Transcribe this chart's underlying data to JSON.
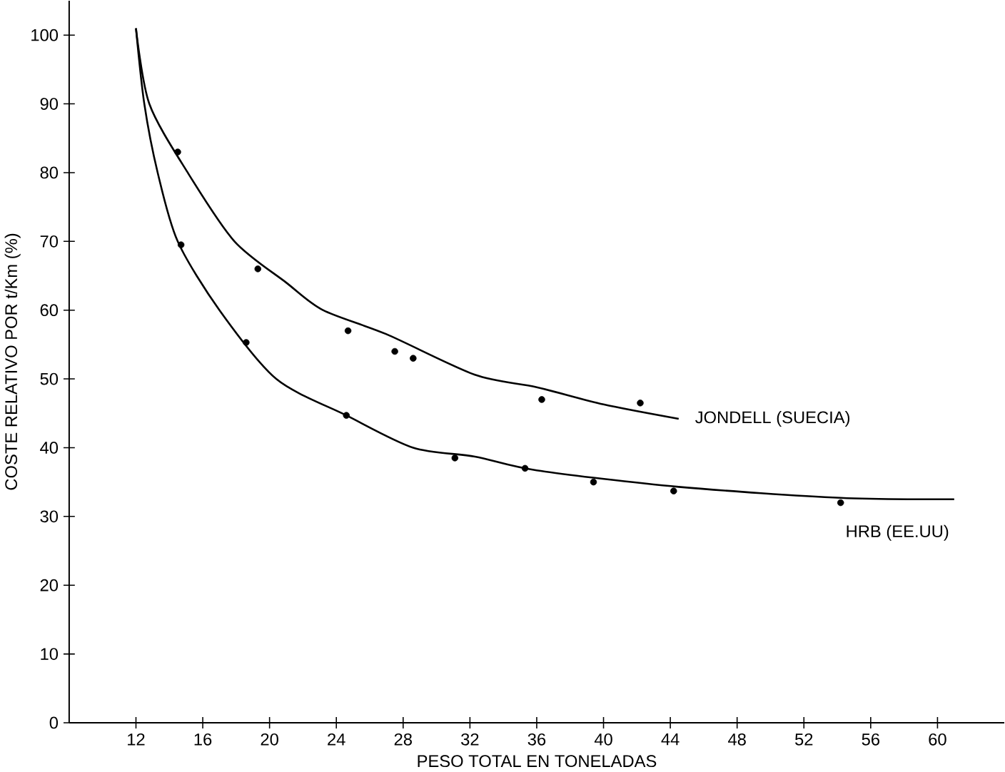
{
  "chart_data": {
    "type": "scatter",
    "xlabel": "PESO TOTAL EN TONELADAS",
    "ylabel": "COSTE RELATIVO POR t/Km (%)",
    "xlim": [
      8,
      64
    ],
    "ylim": [
      0,
      105
    ],
    "xticks": [
      12,
      16,
      20,
      24,
      28,
      32,
      36,
      40,
      44,
      48,
      52,
      56,
      60
    ],
    "yticks": [
      0,
      10,
      20,
      30,
      40,
      50,
      60,
      70,
      80,
      90,
      100
    ],
    "grid": false,
    "series": [
      {
        "marker": "circle",
        "color": "#000000",
        "x": [
          14.5,
          19.3,
          24.7,
          27.5,
          28.6,
          36.3,
          42.2
        ],
        "values": [
          83,
          66,
          57,
          54,
          53,
          47,
          46.5
        ]
      },
      {
        "type": "scatter",
        "marker": "circle",
        "color": "#000000",
        "x": [
          14.7,
          18.6,
          24.6,
          31.1,
          35.3,
          39.4,
          44.2,
          54.2
        ],
        "values": [
          69.5,
          55.3,
          44.7,
          38.5,
          37,
          35,
          33.7,
          32
        ]
      },
      {
        "type": "line",
        "marker": "none",
        "name": "JONDELL (SUECIA)",
        "color": "#000000",
        "x": [
          12,
          12.8,
          15.1,
          17.9,
          21,
          23.2,
          27,
          32.3,
          36,
          40,
          44.5
        ],
        "values": [
          101,
          90,
          80,
          70,
          64,
          60,
          56.5,
          50.6,
          48.8,
          46.3,
          44.2
        ]
      },
      {
        "type": "line",
        "marker": "none",
        "name": "HRB (EE.UU)",
        "color": "#000000",
        "x": [
          12,
          12.5,
          13.3,
          14.5,
          17,
          20.4,
          24.6,
          28.6,
          32.3,
          36,
          44.5,
          54.2,
          61
        ],
        "values": [
          101,
          90,
          80,
          70,
          60,
          50,
          44.7,
          40,
          38.7,
          36.7,
          34.3,
          32.7,
          32.5
        ]
      }
    ]
  }
}
